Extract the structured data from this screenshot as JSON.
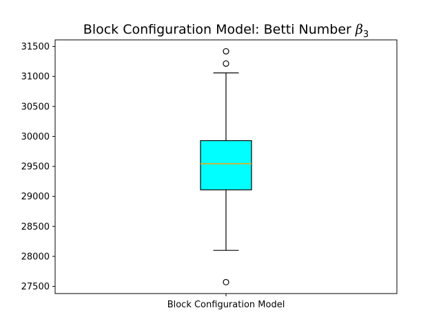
{
  "chart_data": {
    "type": "box",
    "title": "Block Configuration Model: Betti Number β3",
    "title_text": "Block Configuration Model: Betti Number ",
    "title_math": "β",
    "title_math_sub": "3",
    "xlabel": "",
    "ylabel": "",
    "ylim": [
      27380,
      31610
    ],
    "yticks": [
      27500,
      28000,
      28500,
      29000,
      29500,
      30000,
      30500,
      31000,
      31500
    ],
    "categories": [
      "Block Configuration Model"
    ],
    "boxes": [
      {
        "category": "Block Configuration Model",
        "whisker_low": 28100,
        "q1": 29110,
        "median": 29545,
        "q3": 29930,
        "whisker_high": 31060,
        "outliers": [
          31420,
          31215,
          27570
        ],
        "box_color": "#00ffff",
        "median_color": "#ffa500"
      }
    ],
    "grid": false,
    "legend": "none"
  }
}
